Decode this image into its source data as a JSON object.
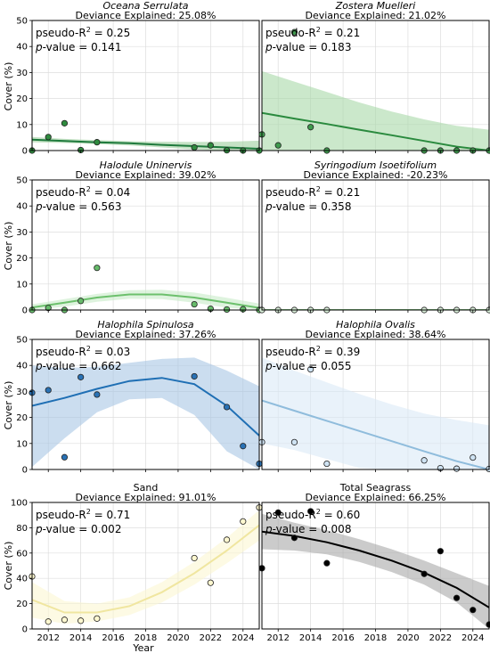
{
  "figure": {
    "ylabel": "Cover (%)",
    "xlabel": "Year",
    "dev_prefix": "Deviance Explained: "
  },
  "chart_data": [
    {
      "type": "scatter",
      "title": "Oceana Serrulata",
      "title_italic": true,
      "deviance_explained": "25.08%",
      "pseudo_r2": "0.25",
      "p_value": "0.141",
      "color": "#1e7a3c",
      "band_color": "#9fcf9f",
      "point_color": "#2e8b3e",
      "ylim": [
        0,
        50
      ],
      "yticks": [
        0,
        10,
        20,
        30,
        40,
        50
      ],
      "x": [
        2011,
        2012,
        2013,
        2014,
        2015,
        2021,
        2022,
        2023,
        2024,
        2025
      ],
      "y": [
        0,
        5.2,
        10.5,
        0.2,
        3.2,
        1.2,
        2,
        0.1,
        0,
        0
      ],
      "fit": {
        "x": [
          2011,
          2013,
          2015,
          2017,
          2019,
          2021,
          2023,
          2025
        ],
        "y": [
          4.2,
          3.7,
          3.2,
          2.8,
          2.2,
          1.7,
          1.2,
          0.7
        ]
      },
      "band_upper": [
        5.2,
        4.5,
        4,
        3.6,
        3.4,
        3.3,
        3.4,
        3.8
      ],
      "band_lower": [
        3.2,
        2.9,
        2.5,
        2,
        1.2,
        0.4,
        0,
        0
      ]
    },
    {
      "type": "scatter",
      "title": "Zostera Muelleri",
      "title_italic": true,
      "deviance_explained": "21.02%",
      "pseudo_r2": "0.21",
      "p_value": "0.183",
      "color": "#2a8a3e",
      "band_color": "#a8d8a8",
      "point_color": "#3f9a4e",
      "ylim": [
        0,
        50
      ],
      "yticks": [
        0,
        10,
        20,
        30,
        40,
        50
      ],
      "x": [
        2011,
        2012,
        2013,
        2014,
        2015,
        2021,
        2022,
        2023,
        2024,
        2025
      ],
      "y": [
        6.2,
        2,
        45.5,
        9,
        0,
        0,
        0,
        0,
        0,
        0
      ],
      "fit": {
        "x": [
          2011,
          2013,
          2015,
          2017,
          2019,
          2021,
          2023,
          2025
        ],
        "y": [
          14.5,
          12.3,
          10.2,
          8,
          5.9,
          3.7,
          1.5,
          0
        ]
      },
      "band_upper": [
        30.5,
        26.5,
        22.5,
        18.5,
        15,
        12,
        9.5,
        8
      ],
      "band_lower": [
        0,
        0,
        0,
        0,
        0,
        0,
        0,
        0
      ]
    },
    {
      "type": "scatter",
      "title": "Halodule Uninervis",
      "title_italic": true,
      "deviance_explained": "39.02%",
      "pseudo_r2": "0.04",
      "p_value": "0.563",
      "color": "#6cc06c",
      "band_color": "#c8ebc8",
      "point_color": "#66bb6a",
      "ylim": [
        0,
        50
      ],
      "yticks": [
        0,
        10,
        20,
        30,
        40,
        50
      ],
      "x": [
        2011,
        2012,
        2013,
        2014,
        2015,
        2021,
        2022,
        2023,
        2024,
        2025
      ],
      "y": [
        0,
        0.8,
        0,
        3.5,
        16.2,
        2.2,
        0.5,
        0.2,
        0.3,
        0
      ],
      "fit": {
        "x": [
          2011,
          2013,
          2015,
          2017,
          2019,
          2021,
          2023,
          2025
        ],
        "y": [
          1,
          2.8,
          4.8,
          6,
          6,
          4.8,
          2.8,
          0.8
        ]
      },
      "band_upper": [
        2.2,
        4.2,
        6.2,
        7.6,
        7.8,
        6.7,
        4.7,
        2.5
      ],
      "band_lower": [
        0,
        1.3,
        3.2,
        4.3,
        4.2,
        2.8,
        0.9,
        0
      ]
    },
    {
      "type": "scatter",
      "title": "Syringodium Isoetifolium",
      "title_italic": true,
      "deviance_explained": "-20.23%",
      "pseudo_r2": "0.21",
      "p_value": "0.358",
      "color": "#7fbf7f",
      "band_color": "#dff0df",
      "point_color": "#d8eed8",
      "ylim": [
        0,
        50
      ],
      "yticks": [
        0,
        10,
        20,
        30,
        40,
        50
      ],
      "x": [
        2011,
        2012,
        2013,
        2014,
        2015,
        2021,
        2022,
        2023,
        2024,
        2025
      ],
      "y": [
        0,
        0,
        0,
        0,
        0,
        0,
        0,
        0,
        0,
        0
      ],
      "fit": {
        "x": [
          2011,
          2025
        ],
        "y": [
          0,
          0
        ]
      },
      "band_upper": [
        0,
        0
      ],
      "band_lower": [
        0,
        0
      ]
    },
    {
      "type": "scatter",
      "title": "Halophila Spinulosa",
      "title_italic": true,
      "deviance_explained": "37.26%",
      "pseudo_r2": "0.03",
      "p_value": "0.662",
      "color": "#1f6fb4",
      "band_color": "#a9c6e4",
      "point_color": "#2a72b5",
      "ylim": [
        0,
        50
      ],
      "yticks": [
        0,
        10,
        20,
        30,
        40,
        50
      ],
      "x": [
        2011,
        2012,
        2013,
        2014,
        2015,
        2021,
        2023,
        2024,
        2025
      ],
      "y": [
        29.5,
        30.5,
        4.7,
        35.5,
        28.8,
        35.8,
        24,
        9,
        2.2
      ],
      "fit": {
        "x": [
          2011,
          2013,
          2015,
          2017,
          2019,
          2021,
          2023,
          2025
        ],
        "y": [
          24.5,
          27.5,
          31,
          34,
          35.2,
          32.8,
          24.5,
          13
        ]
      },
      "band_upper": [
        40,
        39,
        39.5,
        41,
        42.5,
        43,
        38,
        32
      ],
      "band_lower": [
        1,
        12,
        22,
        27,
        27.5,
        21,
        7,
        0
      ]
    },
    {
      "type": "scatter",
      "title": "Halophila Ovalis",
      "title_italic": true,
      "deviance_explained": "38.64%",
      "pseudo_r2": "0.39",
      "p_value": "0.055",
      "color": "#8fbcdc",
      "band_color": "#dbeaf6",
      "point_color": "#cfe3f3",
      "ylim": [
        0,
        50
      ],
      "yticks": [
        0,
        10,
        20,
        30,
        40,
        50
      ],
      "x": [
        2011,
        2013,
        2014,
        2015,
        2021,
        2022,
        2023,
        2024,
        2025
      ],
      "y": [
        10.5,
        10.5,
        38.5,
        2.2,
        3.5,
        0.5,
        0.3,
        4.6,
        0.2
      ],
      "fit": {
        "x": [
          2011,
          2013,
          2015,
          2017,
          2019,
          2021,
          2023,
          2025
        ],
        "y": [
          26.5,
          22.6,
          18.7,
          14.8,
          10.9,
          7,
          3.2,
          0
        ]
      },
      "band_upper": [
        43,
        38,
        33.5,
        29,
        25,
        21.5,
        19,
        17
      ],
      "band_lower": [
        10,
        7.5,
        4,
        0.6,
        0,
        0,
        0,
        0
      ]
    },
    {
      "type": "scatter",
      "title": "Sand",
      "title_italic": false,
      "deviance_explained": "91.01%",
      "pseudo_r2": "0.71",
      "p_value": "0.002",
      "color": "#f0e6a0",
      "band_color": "#fbf6d2",
      "point_color": "#fff8d0",
      "ylim": [
        0,
        100
      ],
      "yticks": [
        0,
        20,
        40,
        60,
        80,
        100
      ],
      "x": [
        2011,
        2012,
        2013,
        2014,
        2015,
        2021,
        2022,
        2023,
        2024,
        2025
      ],
      "y": [
        41.5,
        5.8,
        7.2,
        6.5,
        8.2,
        56,
        36.5,
        70.5,
        85,
        96
      ],
      "fit": {
        "x": [
          2011,
          2013,
          2015,
          2017,
          2019,
          2021,
          2023,
          2025
        ],
        "y": [
          23,
          13,
          13,
          18,
          29,
          44,
          62,
          82
        ]
      },
      "band_upper": [
        37,
        22,
        20,
        25,
        37,
        53,
        72,
        94
      ],
      "band_lower": [
        9,
        4,
        6,
        11,
        21,
        35,
        52,
        70
      ]
    },
    {
      "type": "scatter",
      "title": "Total Seagrass",
      "title_italic": false,
      "deviance_explained": "66.25%",
      "pseudo_r2": "0.60",
      "p_value": "0.008",
      "color": "#000000",
      "band_color": "#a8a8a8",
      "point_color": "#000000",
      "ylim": [
        0,
        100
      ],
      "yticks": [
        0,
        20,
        40,
        60,
        80,
        100
      ],
      "x": [
        2011,
        2012,
        2013,
        2014,
        2015,
        2021,
        2022,
        2023,
        2024,
        2025
      ],
      "y": [
        48,
        92,
        72,
        93,
        52,
        43.5,
        61.5,
        24.5,
        15,
        3.5
      ],
      "fit": {
        "x": [
          2011,
          2013,
          2015,
          2017,
          2019,
          2021,
          2023,
          2025
        ],
        "y": [
          77,
          73.5,
          68.5,
          62,
          54,
          44.5,
          32.5,
          17
        ]
      },
      "band_upper": [
        91,
        84,
        78,
        71,
        63,
        54,
        44,
        34
      ],
      "band_lower": [
        63,
        62,
        59,
        53,
        45,
        35,
        21,
        0
      ]
    }
  ],
  "xaxis": {
    "xlim": [
      2011,
      2025
    ],
    "ticks": [
      "2012",
      "2014",
      "2016",
      "2018",
      "2020",
      "2022",
      "2024"
    ],
    "tick_values": [
      2012,
      2014,
      2016,
      2018,
      2020,
      2022,
      2024
    ]
  }
}
